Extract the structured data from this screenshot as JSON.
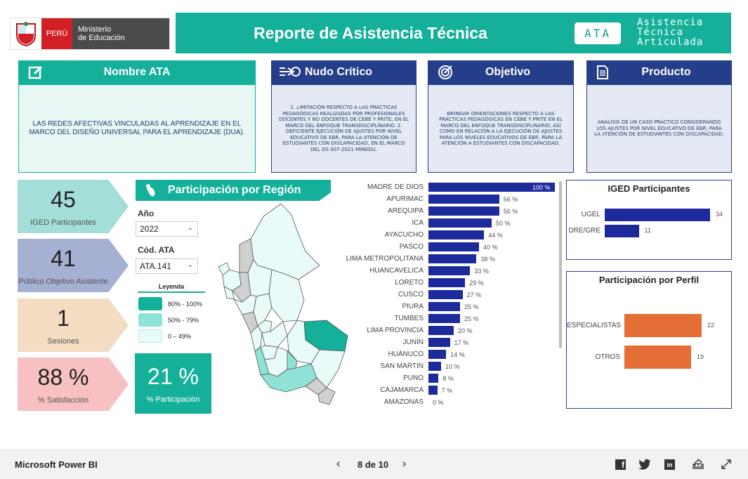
{
  "header": {
    "peru_label": "PERÚ",
    "ministry_line1": "Ministerio",
    "ministry_line2": "de Educación",
    "title": "Reporte de Asistencia Técnica",
    "ata_badge": "ATA",
    "ata_line1": "Asistencia",
    "ata_line2": "Técnica",
    "ata_line3": "Articulada"
  },
  "cards": {
    "nombre": {
      "title": "Nombre ATA",
      "body": "LAS REDES AFECTIVAS VINCULADAS AL APRENDIZAJE EN EL MARCO DEL DISEÑO UNIVERSAL PARA EL APRENDIZAJE (DUA)."
    },
    "nudo": {
      "title": "Nudo Crítico",
      "body": "1. LIMITACIÓN RESPECTO A LAS PRÁCTICAS PEDAGÓGICAS REALIZADAS POR PROFESIONALES DOCENTES Y NO DOCENTES DE CEBE Y PRITE, EN EL MARCO DEL ENFOQUE TRANSDISCIPLINARIO. 2. DEFICIENTE EJECUCIÓN DE AJUSTES POR NIVEL EDUCATIVO DE EBR, PARA LA ATENCIÓN DE ESTUDIANTES CON DISCAPACIDAD, EN EL MARCO DEL DS 007-2021-MINEDU."
    },
    "objetivo": {
      "title": "Objetivo",
      "body": "BRINDAR ORIENTACIONES RESPECTO A LAS PRÁCTICAS PEDAGÓGICAS EN CEBE Y PRITE EN EL MARCO DEL ENFOQUE TRANSDISCIPLINARIO; ASÍ COMO EN RELACIÓN A LA EJECUCIÓN DE AJUSTES PARA LOS NIVELES EDUCATIVOS DE EBR, PARA LA ATENCIÓN A ESTUDIANTES CON DISCAPACIDAD."
    },
    "producto": {
      "title": "Producto",
      "body": "ANÁLISIS DE UN CASO PRÁCTICO CONSIDERANDO LOS AJUSTES POR NIVEL EDUCATIVO DE EBR, PARA LA ATENCIÓN DE ESTUDIANTES CON DISCAPACIDAD."
    }
  },
  "kpis": [
    {
      "value": "45",
      "label": "IGED Participantes",
      "color": "#a4ded8"
    },
    {
      "value": "41",
      "label": "Público Objetivo Asistente",
      "color": "#a6b0d2"
    },
    {
      "value": "1",
      "label": "Sesiones",
      "color": "#f4dcc2"
    },
    {
      "value": "88 %",
      "label": "% Satisfacción",
      "color": "#f7c0c2"
    }
  ],
  "region": {
    "title": "Participación por Región",
    "year_label": "Año",
    "year_value": "2022",
    "code_label": "Cód. ATA",
    "code_value": "ATA.141",
    "legend_title": "Leyenda",
    "legend": [
      {
        "label": "80% - 100%",
        "color": "#14b09a"
      },
      {
        "label": "50% - 79%",
        "color": "#8fe3d6"
      },
      {
        "label": "0 – 49%",
        "color": "#e8fbf8"
      }
    ],
    "participation_value": "21 %",
    "participation_label": "% Participación"
  },
  "chart_data": [
    {
      "type": "bar",
      "orientation": "horizontal",
      "categories": [
        "MADRE DE DIOS",
        "APURIMAC",
        "AREQUIPA",
        "ICA",
        "AYACUCHO",
        "PASCO",
        "LIMA METROPOLITANA",
        "HUANCAVELICA",
        "LORETO",
        "CUSCO",
        "PIURA",
        "TUMBES",
        "LIMA PROVINCIA",
        "JUNÍN",
        "HUÁNUCO",
        "SAN MARTIN",
        "PUNO",
        "CAJAMARCA",
        "AMAZONAS"
      ],
      "values": [
        100,
        56,
        56,
        50,
        44,
        40,
        38,
        33,
        29,
        27,
        25,
        25,
        20,
        17,
        14,
        10,
        8,
        7,
        0
      ],
      "value_labels": [
        "100 %",
        "56 %",
        "56 %",
        "50 %",
        "44 %",
        "40 %",
        "38 %",
        "33 %",
        "29 %",
        "27 %",
        "25 %",
        "25 %",
        "20 %",
        "17 %",
        "14 %",
        "10 %",
        "8 %",
        "7 %",
        "0 %"
      ],
      "color": "#1c2a9c",
      "xlim": [
        0,
        100
      ]
    },
    {
      "type": "bar",
      "orientation": "horizontal",
      "title": "IGED Participantes",
      "categories": [
        "UGEL",
        "DRE/GRE"
      ],
      "values": [
        34,
        11
      ],
      "color": "#1c2a9c"
    },
    {
      "type": "bar",
      "orientation": "horizontal",
      "title": "Participación por Perfil",
      "categories": [
        "ESPECIALISTAS",
        "OTROS"
      ],
      "values": [
        22,
        19
      ],
      "color": "#e46e36"
    }
  ],
  "footer": {
    "brand": "Microsoft Power BI",
    "page": "8 de 10"
  }
}
